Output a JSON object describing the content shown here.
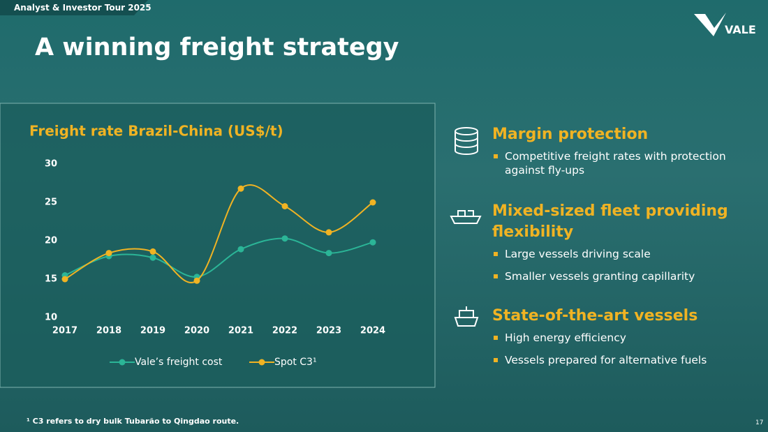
{
  "header": {
    "tag": "Analyst & Investor Tour 2025",
    "title": "A winning freight strategy",
    "logo": "VALE"
  },
  "chart_data": {
    "type": "line",
    "title": "Freight rate Brazil-China (US$/t)",
    "categories": [
      "2017",
      "2018",
      "2019",
      "2020",
      "2021",
      "2022",
      "2023",
      "2024"
    ],
    "series": [
      {
        "name": "Vale’s freight cost",
        "color": "#2bb597",
        "values": [
          15.5,
          18,
          17.8,
          15.3,
          18.9,
          20.3,
          18.4,
          19.8
        ]
      },
      {
        "name": "Spot C3¹",
        "color": "#f0b323",
        "values": [
          15,
          18.4,
          18.6,
          14.8,
          26.8,
          24.5,
          21.1,
          25
        ]
      }
    ],
    "ylim": [
      10,
      30
    ],
    "yticks": [
      10,
      15,
      20,
      25,
      30
    ],
    "grid": false,
    "legend": "bottom"
  },
  "sections": [
    {
      "title": "Margin protection",
      "bullets": [
        "Competitive freight rates with protection against fly-ups"
      ]
    },
    {
      "title": "Mixed-sized fleet providing flexibility",
      "bullets": [
        "Large vessels driving scale",
        "Smaller vessels granting capillarity"
      ]
    },
    {
      "title": "State-of-the-art vessels",
      "bullets": [
        "High energy efficiency",
        "Vessels prepared for alternative fuels"
      ]
    }
  ],
  "footnote": "¹ C3 refers to dry bulk Tubarão to Qingdao route.",
  "page_number": "17"
}
